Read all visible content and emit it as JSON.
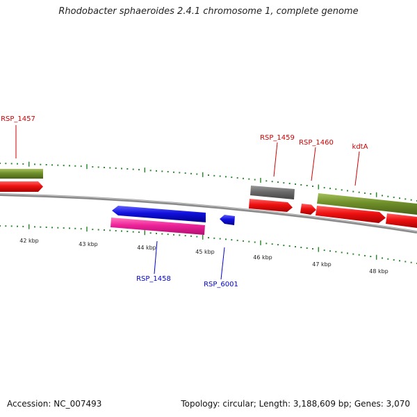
{
  "title": "Rhodobacter sphaeroides 2.4.1 chromosome 1, complete genome",
  "footer": {
    "accession": "Accession: NC_007493",
    "summary": "Topology: circular; Length: 3,188,609 bp; Genes: 3,070"
  },
  "colors": {
    "backbone": "#8a8a8a",
    "tick": "#2f8a2f",
    "tick_label": "#222222",
    "gene_label_red": "#cc0000",
    "gene_label_blue": "#0000cc",
    "red": "#ee1111",
    "olive": "#6f8f2a",
    "blue": "#1010dd",
    "magenta": "#ee2299",
    "gray": "#6a6a6a"
  },
  "scale": {
    "ticks": [
      "42 kbp",
      "43 kbp",
      "44 kbp",
      "45 kbp",
      "46 kbp",
      "47 kbp",
      "48 kbp"
    ]
  },
  "genes": [
    {
      "label": "RSP_1457",
      "label_color": "red",
      "strand": "+"
    },
    {
      "label": "RSP_1458",
      "label_color": "blue",
      "strand": "-"
    },
    {
      "label": "RSP_6001",
      "label_color": "blue",
      "strand": "-"
    },
    {
      "label": "RSP_1459",
      "label_color": "red",
      "strand": "+"
    },
    {
      "label": "RSP_1460",
      "label_color": "red",
      "strand": "+"
    },
    {
      "label": "kdtA",
      "label_color": "red",
      "strand": "+"
    }
  ]
}
